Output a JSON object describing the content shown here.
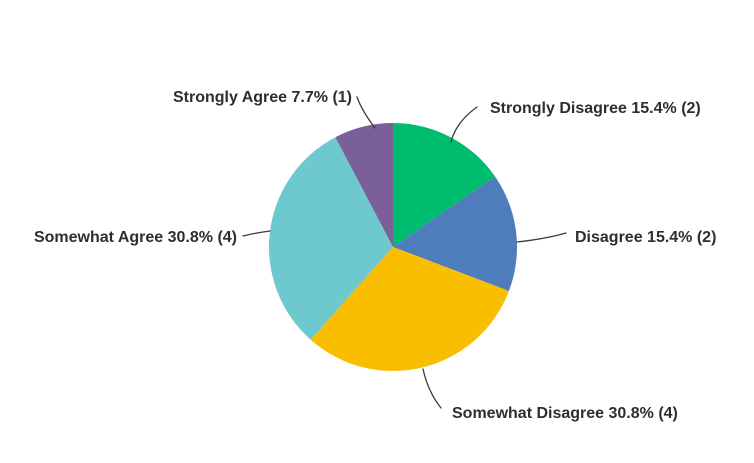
{
  "chart_data": {
    "type": "pie",
    "title": "",
    "direction": "clockwise",
    "start_angle_deg": 0,
    "legend_position": "callout-labels",
    "categories": [
      "Strongly Disagree",
      "Disagree",
      "Somewhat Disagree",
      "Somewhat Agree",
      "Strongly Agree"
    ],
    "slices": [
      {
        "label": "Strongly Disagree",
        "percent": 15.4,
        "count": 2,
        "callout": "Strongly Disagree 15.4% (2)",
        "color": "#00BC6E"
      },
      {
        "label": "Disagree",
        "percent": 15.4,
        "count": 2,
        "callout": "Disagree 15.4% (2)",
        "color": "#4F7CBA"
      },
      {
        "label": "Somewhat Disagree",
        "percent": 30.8,
        "count": 4,
        "callout": "Somewhat Disagree 30.8% (4)",
        "color": "#F9BE00"
      },
      {
        "label": "Somewhat Agree",
        "percent": 30.8,
        "count": 4,
        "callout": "Somewhat Agree 30.8% (4)",
        "color": "#6DC9CE"
      },
      {
        "label": "Strongly Agree",
        "percent": 7.7,
        "count": 1,
        "callout": "Strongly Agree 7.7% (1)",
        "color": "#7B5F99"
      }
    ]
  },
  "colors": {
    "background": "#FFFFFF",
    "label_text": "#2E2E2E",
    "leader_line": "#3C3C3C"
  }
}
